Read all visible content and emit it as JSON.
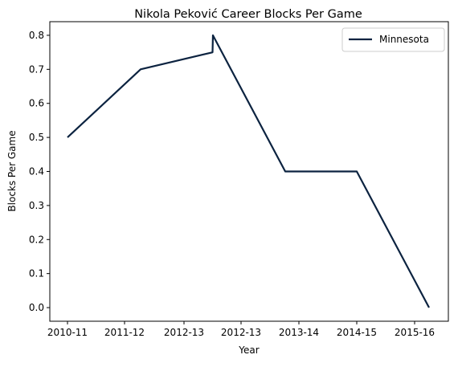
{
  "chart_data": {
    "type": "line",
    "title": "Nikola Peković Career Blocks Per Game",
    "xlabel": "Year",
    "ylabel": "Blocks Per Game",
    "categories": [
      "2010-11",
      "2011-12",
      "2012-13",
      "2012-13",
      "2013-14",
      "2014-15",
      "2015-16"
    ],
    "series": [
      {
        "name": "Minnesota",
        "values": [
          0.5,
          0.7,
          0.75,
          0.8,
          0.4,
          0.4,
          0.0
        ],
        "color": "#0C2340"
      }
    ],
    "x_positions": [
      0,
      1,
      2,
      2.0,
      3,
      4,
      5
    ],
    "ylim": [
      -0.04,
      0.84
    ],
    "yticks": [
      0.0,
      0.1,
      0.2,
      0.3,
      0.4,
      0.5,
      0.6,
      0.7,
      0.8
    ],
    "ytick_labels": [
      "0.0",
      "0.1",
      "0.2",
      "0.3",
      "0.4",
      "0.5",
      "0.6",
      "0.7",
      "0.8"
    ],
    "grid": false,
    "legend_position": "top-right"
  }
}
